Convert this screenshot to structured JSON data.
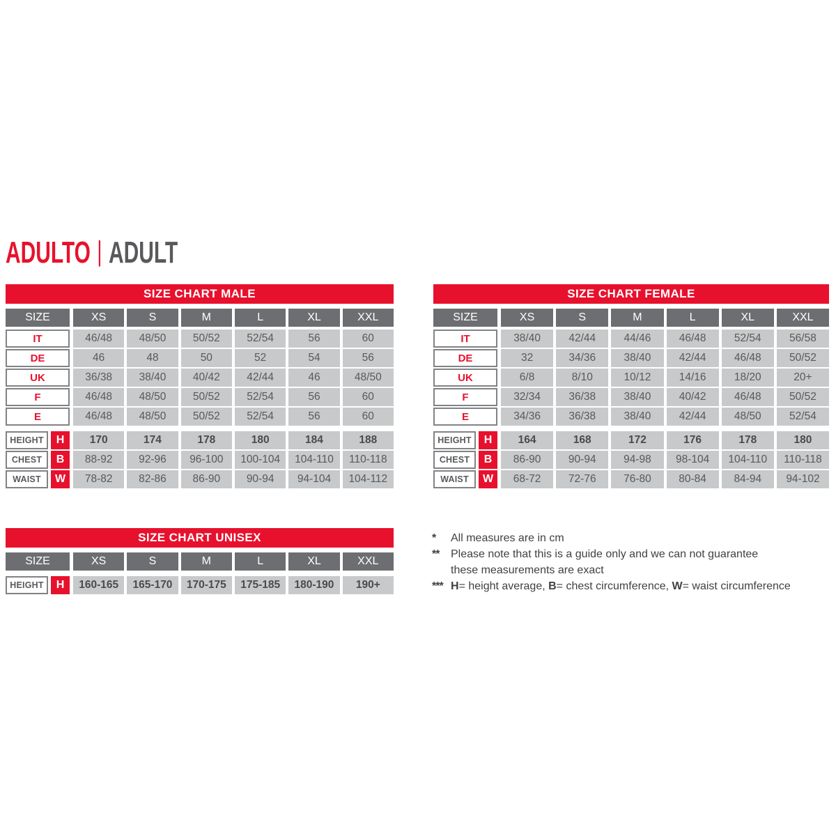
{
  "page_title": {
    "primary": "ADULTO",
    "separator": "|",
    "secondary": "ADULT"
  },
  "colors": {
    "red": "#e8112d",
    "header_gray": "#6d6e71",
    "cell_gray": "#c8c9cb",
    "text_gray": "#58595b",
    "note_text": "#414042"
  },
  "size_label": "SIZE",
  "columns": [
    "XS",
    "S",
    "M",
    "L",
    "XL",
    "XXL"
  ],
  "tables": {
    "male": {
      "title": "SIZE CHART MALE",
      "size_rows": [
        {
          "label": "IT",
          "values": [
            "46/48",
            "48/50",
            "50/52",
            "52/54",
            "56",
            "60"
          ]
        },
        {
          "label": "DE",
          "values": [
            "46",
            "48",
            "50",
            "52",
            "54",
            "56"
          ]
        },
        {
          "label": "UK",
          "values": [
            "36/38",
            "38/40",
            "40/42",
            "42/44",
            "46",
            "48/50"
          ]
        },
        {
          "label": "F",
          "values": [
            "46/48",
            "48/50",
            "50/52",
            "52/54",
            "56",
            "60"
          ]
        },
        {
          "label": "E",
          "values": [
            "46/48",
            "48/50",
            "50/52",
            "52/54",
            "56",
            "60"
          ]
        }
      ],
      "measure_rows": [
        {
          "label": "HEIGHT",
          "letter": "H",
          "bold": true,
          "values": [
            "170",
            "174",
            "178",
            "180",
            "184",
            "188"
          ]
        },
        {
          "label": "CHEST",
          "letter": "B",
          "bold": false,
          "values": [
            "88-92",
            "92-96",
            "96-100",
            "100-104",
            "104-110",
            "110-118"
          ]
        },
        {
          "label": "WAIST",
          "letter": "W",
          "bold": false,
          "values": [
            "78-82",
            "82-86",
            "86-90",
            "90-94",
            "94-104",
            "104-112"
          ]
        }
      ]
    },
    "female": {
      "title": "SIZE CHART FEMALE",
      "size_rows": [
        {
          "label": "IT",
          "values": [
            "38/40",
            "42/44",
            "44/46",
            "46/48",
            "52/54",
            "56/58"
          ]
        },
        {
          "label": "DE",
          "values": [
            "32",
            "34/36",
            "38/40",
            "42/44",
            "46/48",
            "50/52"
          ]
        },
        {
          "label": "UK",
          "values": [
            "6/8",
            "8/10",
            "10/12",
            "14/16",
            "18/20",
            "20+"
          ]
        },
        {
          "label": "F",
          "values": [
            "32/34",
            "36/38",
            "38/40",
            "40/42",
            "46/48",
            "50/52"
          ]
        },
        {
          "label": "E",
          "values": [
            "34/36",
            "36/38",
            "38/40",
            "42/44",
            "48/50",
            "52/54"
          ]
        }
      ],
      "measure_rows": [
        {
          "label": "HEIGHT",
          "letter": "H",
          "bold": true,
          "values": [
            "164",
            "168",
            "172",
            "176",
            "178",
            "180"
          ]
        },
        {
          "label": "CHEST",
          "letter": "B",
          "bold": false,
          "values": [
            "86-90",
            "90-94",
            "94-98",
            "98-104",
            "104-110",
            "110-118"
          ]
        },
        {
          "label": "WAIST",
          "letter": "W",
          "bold": false,
          "values": [
            "68-72",
            "72-76",
            "76-80",
            "80-84",
            "84-94",
            "94-102"
          ]
        }
      ]
    },
    "unisex": {
      "title": "SIZE CHART UNISEX",
      "size_rows": [],
      "measure_rows": [
        {
          "label": "HEIGHT",
          "letter": "H",
          "bold": true,
          "values": [
            "160-165",
            "165-170",
            "170-175",
            "175-185",
            "180-190",
            "190+"
          ]
        }
      ]
    }
  },
  "footnotes": {
    "note1": {
      "marker": "*",
      "text": "All measures are in cm"
    },
    "note2": {
      "marker": "**",
      "text": "Please note that this is a guide only and we can not guarantee these measurements are exact"
    },
    "note3": {
      "marker": "***",
      "segments": [
        {
          "text": "H",
          "bold": true
        },
        {
          "text": "= height average, ",
          "bold": false
        },
        {
          "text": "B",
          "bold": true
        },
        {
          "text": "= chest circumference, ",
          "bold": false
        },
        {
          "text": "W",
          "bold": true
        },
        {
          "text": "= waist circumference",
          "bold": false
        }
      ]
    }
  }
}
